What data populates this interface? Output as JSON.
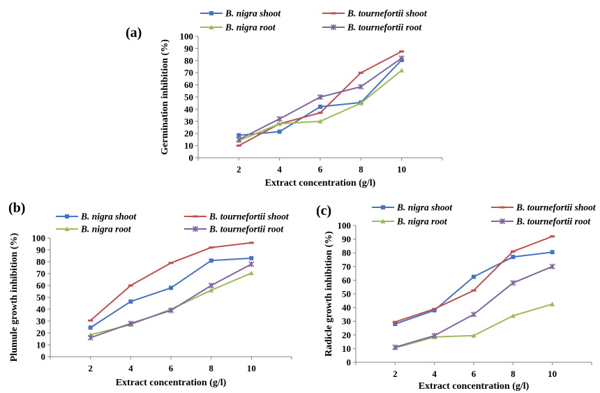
{
  "colors": {
    "b_nigra_shoot": "#4472C4",
    "b_tournefortii_shoot": "#C0504D",
    "b_nigra_root": "#9BBB59",
    "b_tournefortii_root": "#8064A2"
  },
  "chart_data": [
    {
      "type": "line",
      "panel_label": "(a)",
      "title": "",
      "xlabel": "Extract concentration (g/l)",
      "ylabel": "Germination inhibition (%)",
      "x": [
        2,
        4,
        6,
        8,
        10
      ],
      "ylim": [
        0,
        100
      ],
      "yticks": [
        0,
        10,
        20,
        30,
        40,
        50,
        60,
        70,
        80,
        90,
        100
      ],
      "grid": false,
      "legend_position": "top",
      "series": [
        {
          "name": "B. nigra shoot",
          "color_key": "b_nigra_shoot",
          "marker": "square",
          "values": [
            18.5,
            21.5,
            42,
            45.5,
            80.5
          ]
        },
        {
          "name": "B. tournefortii shoot",
          "color_key": "b_tournefortii_shoot",
          "marker": "dash",
          "values": [
            10,
            28,
            37,
            70,
            87.5
          ]
        },
        {
          "name": "B. nigra root",
          "color_key": "b_nigra_root",
          "marker": "triangle",
          "values": [
            14,
            28,
            30,
            45,
            72
          ]
        },
        {
          "name": "B. tournefortii root",
          "color_key": "b_tournefortii_root",
          "marker": "star",
          "values": [
            15,
            32,
            50,
            58.5,
            82
          ]
        }
      ]
    },
    {
      "type": "line",
      "panel_label": "(b)",
      "title": "",
      "xlabel": "Extract concentration (g/l)",
      "ylabel": "Plumule growth inhibition (%)",
      "x": [
        2,
        4,
        6,
        8,
        10
      ],
      "ylim": [
        0,
        100
      ],
      "yticks": [
        0,
        10,
        20,
        30,
        40,
        50,
        60,
        70,
        80,
        90,
        100
      ],
      "grid": false,
      "legend_position": "top",
      "series": [
        {
          "name": "B. nigra shoot",
          "color_key": "b_nigra_shoot",
          "marker": "square",
          "values": [
            24.5,
            46.5,
            58,
            81,
            83
          ]
        },
        {
          "name": "B. tournefortii shoot",
          "color_key": "b_tournefortii_shoot",
          "marker": "dash",
          "values": [
            30.5,
            60,
            79,
            92,
            96
          ]
        },
        {
          "name": "B. nigra root",
          "color_key": "b_nigra_root",
          "marker": "triangle",
          "values": [
            18.5,
            27,
            40,
            56,
            70.5
          ]
        },
        {
          "name": "B. tournefortii root",
          "color_key": "b_tournefortii_root",
          "marker": "star",
          "values": [
            16,
            28,
            39,
            60,
            78
          ]
        }
      ]
    },
    {
      "type": "line",
      "panel_label": "(c)",
      "title": "",
      "xlabel": "Extract concentration (g/l)",
      "ylabel": "Radicle growth inhibition (%)",
      "x": [
        2,
        4,
        6,
        8,
        10
      ],
      "ylim": [
        0,
        100
      ],
      "yticks": [
        0,
        10,
        20,
        30,
        40,
        50,
        60,
        70,
        80,
        90,
        100
      ],
      "grid": false,
      "legend_position": "top",
      "series": [
        {
          "name": "B. nigra shoot",
          "color_key": "b_nigra_shoot",
          "marker": "square",
          "values": [
            28,
            38,
            62.5,
            77,
            80.5
          ]
        },
        {
          "name": "B. tournefortii shoot",
          "color_key": "b_tournefortii_shoot",
          "marker": "dash",
          "values": [
            29.5,
            39,
            52.5,
            81,
            92
          ]
        },
        {
          "name": "B. nigra root",
          "color_key": "b_nigra_root",
          "marker": "triangle",
          "values": [
            10.5,
            18.5,
            19.5,
            34,
            42.5
          ]
        },
        {
          "name": "B. tournefortii root",
          "color_key": "b_tournefortii_root",
          "marker": "star",
          "values": [
            11,
            19.5,
            35,
            58,
            70
          ]
        }
      ]
    }
  ]
}
